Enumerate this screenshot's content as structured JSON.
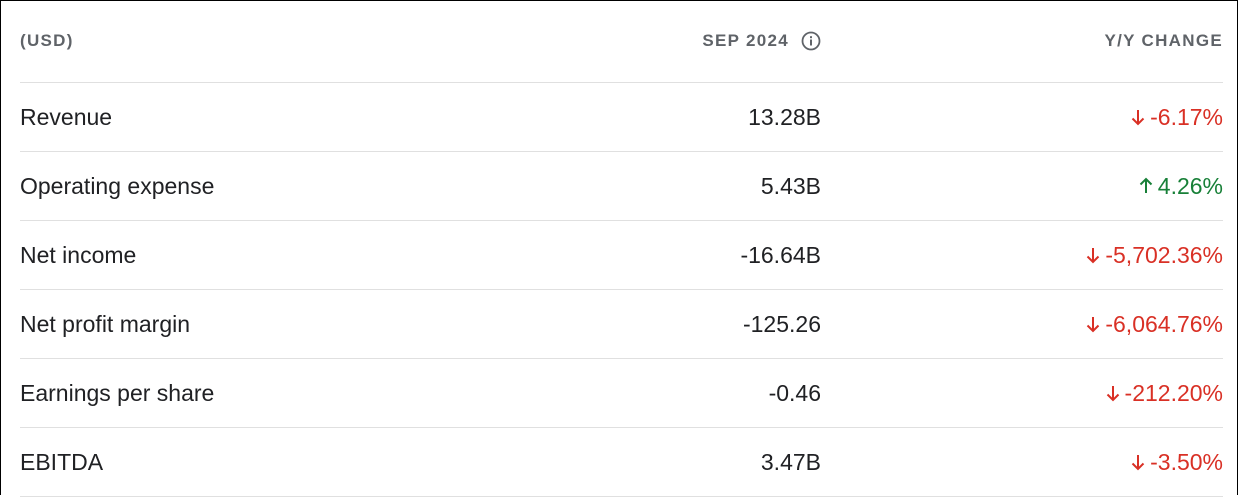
{
  "header": {
    "currency": "(USD)",
    "period": "SEP 2024",
    "change": "Y/Y CHANGE"
  },
  "colors": {
    "negative": "#d93025",
    "positive": "#188038"
  },
  "rows": [
    {
      "label": "Revenue",
      "value": "13.28B",
      "change": "-6.17%",
      "direction": "down"
    },
    {
      "label": "Operating expense",
      "value": "5.43B",
      "change": "4.26%",
      "direction": "up"
    },
    {
      "label": "Net income",
      "value": "-16.64B",
      "change": "-5,702.36%",
      "direction": "down"
    },
    {
      "label": "Net profit margin",
      "value": "-125.26",
      "change": "-6,064.76%",
      "direction": "down"
    },
    {
      "label": "Earnings per share",
      "value": "-0.46",
      "change": "-212.20%",
      "direction": "down"
    },
    {
      "label": "EBITDA",
      "value": "3.47B",
      "change": "-3.50%",
      "direction": "down"
    }
  ]
}
